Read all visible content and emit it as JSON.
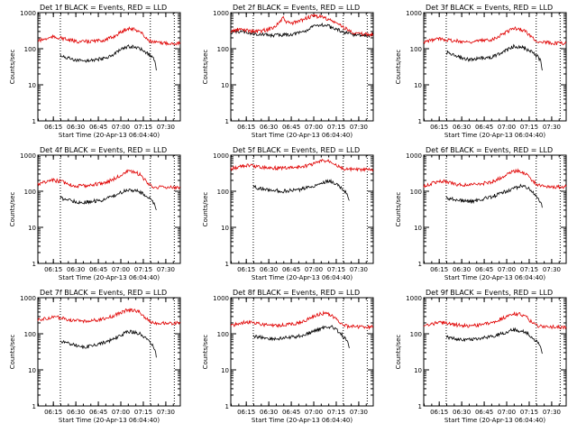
{
  "figure": {
    "ylabel": "Counts/sec",
    "xlabel": "Start Time (20-Apr-13 06:04:40)",
    "x_ticks": [
      "06:15",
      "06:30",
      "06:45",
      "07:00",
      "07:15",
      "07:30"
    ],
    "y_ticks": [
      "1",
      "10",
      "100",
      "1000"
    ],
    "colors": {
      "events": "#000000",
      "lld": "#e00000"
    }
  },
  "chart_data": [
    {
      "type": "line",
      "title": "Det 1f BLACK = Events, RED = LLD",
      "x_unit": "minutes since 06:04:40",
      "xlim": [
        0,
        95
      ],
      "ylim": [
        1,
        1000
      ],
      "yscale": "log",
      "markers": [
        15,
        75,
        91
      ],
      "series": [
        {
          "name": "Events",
          "x": [
            15,
            20,
            25,
            30,
            35,
            40,
            45,
            50,
            55,
            60,
            65,
            68,
            70,
            72,
            74,
            76,
            78,
            79
          ],
          "y": [
            65,
            55,
            48,
            45,
            48,
            50,
            55,
            68,
            90,
            115,
            110,
            100,
            90,
            80,
            70,
            60,
            45,
            25
          ]
        },
        {
          "name": "LLD",
          "x": [
            0,
            5,
            10,
            15,
            20,
            25,
            30,
            35,
            40,
            45,
            50,
            55,
            60,
            65,
            68,
            70,
            72,
            74,
            76,
            78,
            80,
            85,
            90,
            95
          ],
          "y": [
            165,
            185,
            210,
            200,
            175,
            160,
            155,
            160,
            165,
            175,
            210,
            280,
            370,
            340,
            300,
            250,
            200,
            170,
            155,
            150,
            145,
            145,
            140,
            145
          ]
        }
      ]
    },
    {
      "type": "line",
      "title": "Det 2f BLACK = Events, RED = LLD",
      "x_unit": "minutes since 06:04:40",
      "xlim": [
        0,
        95
      ],
      "ylim": [
        1,
        1000
      ],
      "yscale": "log",
      "markers": [
        15,
        75,
        91
      ],
      "series": [
        {
          "name": "Events",
          "x": [
            0,
            5,
            10,
            15,
            20,
            25,
            30,
            35,
            40,
            45,
            50,
            55,
            60,
            65,
            70,
            75,
            80,
            85,
            90,
            95
          ],
          "y": [
            280,
            300,
            290,
            260,
            250,
            240,
            235,
            240,
            250,
            270,
            320,
            400,
            480,
            420,
            350,
            290,
            250,
            240,
            235,
            240
          ]
        },
        {
          "name": "LLD",
          "x": [
            0,
            5,
            10,
            15,
            20,
            25,
            30,
            35,
            37,
            40,
            45,
            50,
            55,
            60,
            65,
            70,
            75,
            80,
            85,
            90,
            95
          ],
          "y": [
            300,
            340,
            330,
            300,
            310,
            340,
            430,
            700,
            550,
            500,
            560,
            700,
            800,
            780,
            650,
            520,
            400,
            300,
            260,
            250,
            250
          ]
        }
      ]
    },
    {
      "type": "line",
      "title": "Det 3f BLACK = Events, RED = LLD",
      "x_unit": "minutes since 06:04:40",
      "xlim": [
        0,
        95
      ],
      "ylim": [
        1,
        1000
      ],
      "yscale": "log",
      "markers": [
        15,
        75,
        91
      ],
      "series": [
        {
          "name": "Events",
          "x": [
            15,
            20,
            25,
            30,
            35,
            40,
            45,
            50,
            55,
            60,
            65,
            68,
            70,
            72,
            74,
            76,
            78,
            79
          ],
          "y": [
            80,
            65,
            55,
            50,
            52,
            55,
            58,
            70,
            90,
            115,
            110,
            100,
            90,
            80,
            70,
            60,
            45,
            25
          ]
        },
        {
          "name": "LLD",
          "x": [
            0,
            5,
            10,
            15,
            20,
            25,
            30,
            35,
            40,
            45,
            50,
            55,
            60,
            65,
            68,
            70,
            72,
            74,
            76,
            78,
            80,
            85,
            90,
            95
          ],
          "y": [
            150,
            170,
            190,
            180,
            165,
            160,
            155,
            160,
            170,
            180,
            220,
            290,
            370,
            340,
            300,
            250,
            210,
            180,
            160,
            150,
            150,
            145,
            140,
            145
          ]
        }
      ]
    },
    {
      "type": "line",
      "title": "Det 4f BLACK = Events, RED = LLD",
      "x_unit": "minutes since 06:04:40",
      "xlim": [
        0,
        95
      ],
      "ylim": [
        1,
        1000
      ],
      "yscale": "log",
      "markers": [
        15,
        75,
        91
      ],
      "series": [
        {
          "name": "Events",
          "x": [
            15,
            20,
            25,
            30,
            35,
            40,
            45,
            50,
            55,
            60,
            65,
            68,
            70,
            72,
            74,
            76,
            78,
            79
          ],
          "y": [
            65,
            58,
            52,
            48,
            52,
            55,
            60,
            72,
            90,
            110,
            105,
            95,
            85,
            75,
            65,
            55,
            42,
            30
          ]
        },
        {
          "name": "LLD",
          "x": [
            0,
            5,
            10,
            15,
            20,
            25,
            30,
            35,
            40,
            45,
            50,
            55,
            60,
            65,
            68,
            70,
            72,
            74,
            76,
            78,
            80,
            85,
            90,
            95
          ],
          "y": [
            160,
            180,
            200,
            190,
            160,
            140,
            140,
            150,
            160,
            175,
            210,
            280,
            350,
            330,
            290,
            240,
            190,
            160,
            140,
            130,
            130,
            130,
            125,
            130
          ]
        }
      ]
    },
    {
      "type": "line",
      "title": "Det 5f BLACK = Events, RED = LLD",
      "x_unit": "minutes since 06:04:40",
      "xlim": [
        0,
        95
      ],
      "ylim": [
        1,
        1000
      ],
      "yscale": "log",
      "markers": [
        15,
        75,
        91
      ],
      "series": [
        {
          "name": "Events",
          "x": [
            15,
            20,
            25,
            30,
            35,
            40,
            45,
            50,
            55,
            60,
            65,
            68,
            70,
            72,
            74,
            76,
            78,
            79
          ],
          "y": [
            130,
            120,
            110,
            105,
            100,
            105,
            110,
            120,
            140,
            170,
            190,
            180,
            160,
            140,
            120,
            100,
            80,
            55
          ]
        },
        {
          "name": "LLD",
          "x": [
            0,
            5,
            10,
            15,
            20,
            25,
            30,
            35,
            40,
            45,
            50,
            55,
            60,
            65,
            68,
            70,
            72,
            74,
            76,
            78,
            80,
            85,
            90,
            95
          ],
          "y": [
            420,
            470,
            520,
            500,
            470,
            450,
            440,
            440,
            450,
            460,
            500,
            570,
            680,
            700,
            640,
            560,
            480,
            440,
            410,
            400,
            400,
            390,
            390,
            390
          ]
        }
      ]
    },
    {
      "type": "line",
      "title": "Det 6f BLACK = Events, RED = LLD",
      "x_unit": "minutes since 06:04:40",
      "xlim": [
        0,
        95
      ],
      "ylim": [
        1,
        1000
      ],
      "yscale": "log",
      "markers": [
        15,
        75,
        91
      ],
      "series": [
        {
          "name": "Events",
          "x": [
            15,
            20,
            25,
            30,
            35,
            40,
            45,
            50,
            55,
            60,
            65,
            68,
            70,
            72,
            74,
            76,
            78,
            79
          ],
          "y": [
            65,
            60,
            55,
            52,
            55,
            62,
            70,
            82,
            100,
            120,
            140,
            135,
            120,
            100,
            80,
            62,
            48,
            35
          ]
        },
        {
          "name": "LLD",
          "x": [
            0,
            5,
            10,
            15,
            20,
            25,
            30,
            35,
            40,
            45,
            50,
            55,
            60,
            65,
            68,
            70,
            72,
            74,
            76,
            78,
            80,
            85,
            90,
            95
          ],
          "y": [
            140,
            160,
            190,
            185,
            160,
            150,
            150,
            155,
            165,
            180,
            220,
            290,
            370,
            350,
            310,
            260,
            210,
            175,
            150,
            140,
            140,
            135,
            130,
            135
          ]
        }
      ]
    },
    {
      "type": "line",
      "title": "Det 7f BLACK = Events, RED = LLD",
      "x_unit": "minutes since 06:04:40",
      "xlim": [
        0,
        95
      ],
      "ylim": [
        1,
        1000
      ],
      "yscale": "log",
      "markers": [
        15,
        75,
        91
      ],
      "series": [
        {
          "name": "Events",
          "x": [
            15,
            20,
            25,
            30,
            35,
            40,
            45,
            50,
            55,
            60,
            65,
            68,
            70,
            72,
            74,
            76,
            78,
            79
          ],
          "y": [
            60,
            55,
            48,
            42,
            45,
            52,
            58,
            70,
            90,
            115,
            110,
            100,
            88,
            75,
            62,
            50,
            38,
            22
          ]
        },
        {
          "name": "LLD",
          "x": [
            0,
            5,
            10,
            15,
            20,
            25,
            30,
            35,
            40,
            45,
            50,
            55,
            60,
            65,
            68,
            70,
            72,
            74,
            76,
            78,
            80,
            85,
            90,
            95
          ],
          "y": [
            240,
            260,
            290,
            280,
            250,
            230,
            225,
            230,
            240,
            260,
            310,
            380,
            460,
            440,
            390,
            330,
            270,
            230,
            210,
            200,
            200,
            200,
            195,
            200
          ]
        }
      ]
    },
    {
      "type": "line",
      "title": "Det 8f BLACK = Events, RED = LLD",
      "x_unit": "minutes since 06:04:40",
      "xlim": [
        0,
        95
      ],
      "ylim": [
        1,
        1000
      ],
      "yscale": "log",
      "markers": [
        15,
        75,
        91
      ],
      "series": [
        {
          "name": "Events",
          "x": [
            15,
            20,
            25,
            30,
            35,
            40,
            45,
            50,
            55,
            60,
            65,
            68,
            70,
            72,
            74,
            76,
            78,
            79
          ],
          "y": [
            85,
            80,
            75,
            72,
            75,
            80,
            85,
            95,
            115,
            140,
            160,
            150,
            135,
            115,
            95,
            75,
            55,
            40
          ]
        },
        {
          "name": "LLD",
          "x": [
            0,
            5,
            10,
            15,
            20,
            25,
            30,
            35,
            40,
            45,
            50,
            55,
            60,
            65,
            68,
            70,
            72,
            74,
            76,
            78,
            80,
            85,
            90,
            95
          ],
          "y": [
            170,
            190,
            210,
            200,
            185,
            175,
            170,
            175,
            185,
            200,
            240,
            300,
            370,
            350,
            310,
            260,
            215,
            185,
            170,
            160,
            160,
            155,
            150,
            155
          ]
        }
      ]
    },
    {
      "type": "line",
      "title": "Det 9f BLACK = Events, RED = LLD",
      "x_unit": "minutes since 06:04:40",
      "xlim": [
        0,
        95
      ],
      "ylim": [
        1,
        1000
      ],
      "yscale": "log",
      "markers": [
        15,
        75,
        91
      ],
      "series": [
        {
          "name": "Events",
          "x": [
            15,
            20,
            25,
            30,
            35,
            40,
            45,
            50,
            55,
            60,
            65,
            68,
            70,
            72,
            74,
            76,
            78,
            79
          ],
          "y": [
            80,
            75,
            70,
            68,
            72,
            78,
            85,
            95,
            110,
            130,
            120,
            110,
            95,
            80,
            68,
            55,
            42,
            28
          ]
        },
        {
          "name": "LLD",
          "x": [
            0,
            5,
            10,
            15,
            20,
            25,
            30,
            35,
            40,
            45,
            50,
            55,
            60,
            65,
            68,
            70,
            72,
            74,
            76,
            78,
            80,
            85,
            90,
            95
          ],
          "y": [
            160,
            180,
            210,
            200,
            180,
            170,
            165,
            170,
            180,
            200,
            240,
            300,
            360,
            340,
            300,
            250,
            210,
            180,
            165,
            160,
            160,
            155,
            150,
            155
          ]
        }
      ]
    }
  ]
}
